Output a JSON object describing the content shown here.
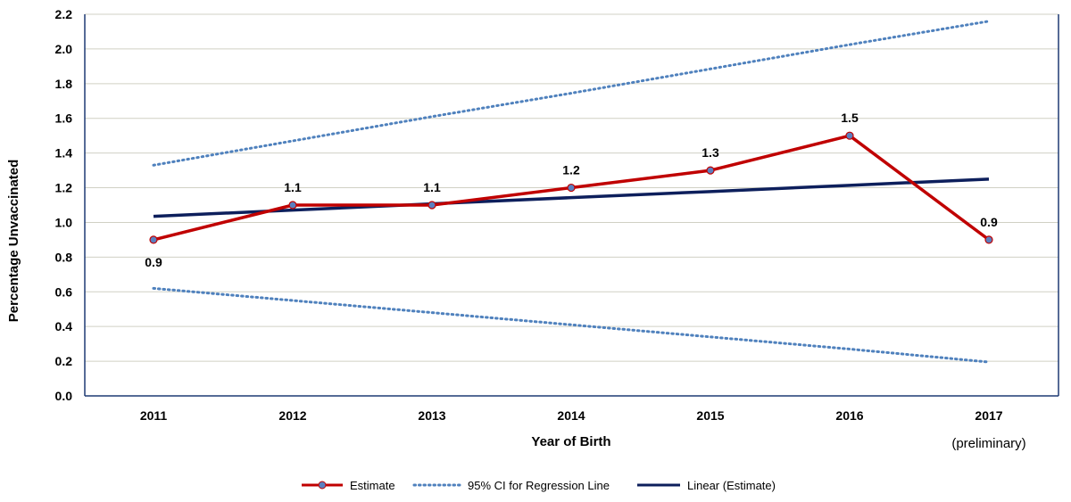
{
  "chart_data": {
    "type": "line",
    "title": "",
    "xlabel": "Year of Birth",
    "ylabel": "Percentage  Unvaccinated",
    "categories": [
      "2011",
      "2012",
      "2013",
      "2014",
      "2015",
      "2016",
      "2017"
    ],
    "x_note": "(preliminary)",
    "ylim": [
      0,
      2.2
    ],
    "yticks": [
      "0.0",
      "0.2",
      "0.4",
      "0.6",
      "0.8",
      "1.0",
      "1.2",
      "1.4",
      "1.6",
      "1.8",
      "2.0",
      "2.2"
    ],
    "grid": "horizontal",
    "legend_position": "bottom",
    "series": [
      {
        "name": "Estimate",
        "values": [
          0.9,
          1.1,
          1.1,
          1.2,
          1.3,
          1.5,
          0.9
        ],
        "labels": [
          "0.9",
          "1.1",
          "1.1",
          "1.2",
          "1.3",
          "1.5",
          "0.9"
        ],
        "label_position": [
          "below",
          "above",
          "above",
          "above",
          "above",
          "above",
          "above"
        ],
        "color": "#C00000",
        "marker_fill": "#5B7FBF",
        "style": "solid-markers"
      },
      {
        "name": "95% CI for Regression Line",
        "upper": [
          1.33,
          1.47,
          1.61,
          1.745,
          1.885,
          2.025,
          2.16
        ],
        "lower": [
          0.62,
          0.55,
          0.48,
          0.41,
          0.34,
          0.27,
          0.195
        ],
        "color": "#4F81BD",
        "style": "dotted"
      },
      {
        "name": "Linear (Estimate)",
        "values": [
          1.035,
          1.071,
          1.107,
          1.143,
          1.178,
          1.214,
          1.25
        ],
        "color": "#0D1F5C",
        "style": "solid"
      }
    ]
  }
}
